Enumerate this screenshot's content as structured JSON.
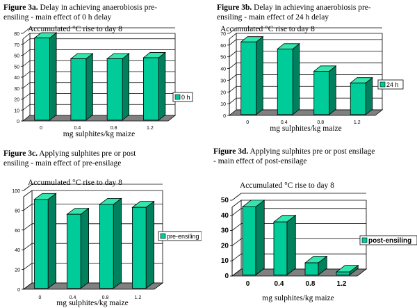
{
  "captions": [
    {
      "label": "Figure 3a.",
      "text": " Delay in achieving anaerobiosis pre-",
      "line2": "ensiling - main effect of 0 h delay"
    },
    {
      "label": "Figure 3b.",
      "text": " Delay in achieving anaerobiosis pre-",
      "line2": "ensiling - main effect of 24 h delay"
    },
    {
      "label": "Figure 3c.",
      "text": " Applying sulphites pre or post",
      "line2": "ensiling - main effect of pre-ensilage"
    },
    {
      "label": "Figure 3d.",
      "text": " Applying sulphites pre or post ensilage",
      "line2": "- main effect of post-ensilage"
    }
  ],
  "colors": {
    "bar_front": "#00cc99",
    "bar_top": "#33e6ad",
    "bar_side": "#00805c",
    "floor": "#808080",
    "wall": "#ffffff",
    "outline": "#000000"
  },
  "chart_data": [
    {
      "type": "bar",
      "title": "Accumulated  °C rise to day 8",
      "categories": [
        "0",
        "0.4",
        "0.8",
        "1.2"
      ],
      "series": [
        {
          "name": "0 h",
          "values": [
            75,
            56,
            56,
            57
          ]
        }
      ],
      "xlabel": "mg sulphites/kg maize",
      "ylabel": "",
      "ylim": [
        0,
        80
      ],
      "yticks": [
        0,
        10,
        20,
        30,
        40,
        50,
        60,
        70,
        80
      ],
      "legend": "right",
      "grid": true
    },
    {
      "type": "bar",
      "title": "Accumulated  °C rise to day 8",
      "categories": [
        "0",
        "0.4",
        "0.8",
        "1.2"
      ],
      "series": [
        {
          "name": "24 h",
          "values": [
            62,
            56,
            37,
            27
          ]
        }
      ],
      "xlabel": "mg sulphites/kg maize",
      "ylabel": "",
      "ylim": [
        0,
        70
      ],
      "yticks": [
        0,
        10,
        20,
        30,
        40,
        50,
        60,
        70
      ],
      "legend": "right",
      "grid": true
    },
    {
      "type": "bar",
      "title": "Accumulated  °C rise to day 8",
      "categories": [
        "0",
        "0.4",
        "0.8",
        "1.2"
      ],
      "series": [
        {
          "name": "pre-ensiling",
          "values": [
            90,
            75,
            85,
            82
          ]
        }
      ],
      "xlabel": "mg sulphites/kg maize",
      "ylabel": "",
      "ylim": [
        0,
        100
      ],
      "yticks": [
        0,
        20,
        40,
        60,
        80,
        100
      ],
      "legend": "right",
      "grid": true
    },
    {
      "type": "bar",
      "title": "Accumulated  °C rise to day 8",
      "categories": [
        "0",
        "0.4",
        "0.8",
        "1.2"
      ],
      "series": [
        {
          "name": "post-ensiling",
          "values": [
            45,
            35,
            8,
            2
          ]
        }
      ],
      "xlabel": "mg sulphites/kg maize",
      "ylabel": "",
      "ylim": [
        0,
        50
      ],
      "yticks": [
        0,
        10,
        20,
        30,
        40,
        50
      ],
      "legend": "right",
      "grid": true
    }
  ]
}
